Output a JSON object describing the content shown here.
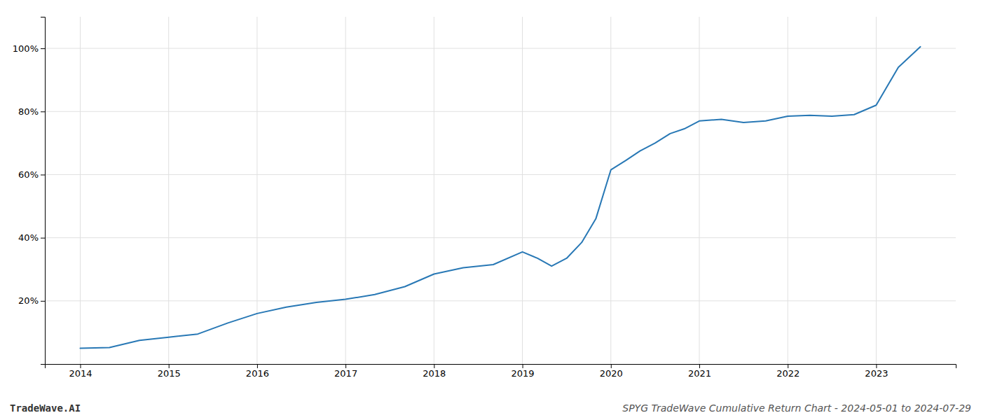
{
  "chart_data": {
    "type": "line",
    "title": "SPYG TradeWave Cumulative Return Chart - 2024-05-01 to 2024-07-29",
    "annotations": [
      "TradeWave.AI"
    ],
    "x": [
      2014.0,
      2014.33,
      2014.67,
      2015.0,
      2015.33,
      2015.67,
      2016.0,
      2016.33,
      2016.67,
      2017.0,
      2017.33,
      2017.67,
      2018.0,
      2018.33,
      2018.67,
      2019.0,
      2019.17,
      2019.33,
      2019.5,
      2019.67,
      2019.83,
      2020.0,
      2020.17,
      2020.33,
      2020.5,
      2020.67,
      2020.83,
      2021.0,
      2021.25,
      2021.5,
      2021.75,
      2022.0,
      2022.25,
      2022.5,
      2022.75,
      2023.0,
      2023.25,
      2023.5
    ],
    "values": [
      5.0,
      5.2,
      7.5,
      8.5,
      9.5,
      13.0,
      16.0,
      18.0,
      19.5,
      20.5,
      22.0,
      24.5,
      28.5,
      30.5,
      31.5,
      35.5,
      33.5,
      31.0,
      33.5,
      38.5,
      46.0,
      61.5,
      64.5,
      67.5,
      70.0,
      73.0,
      74.5,
      77.0,
      77.5,
      76.5,
      77.0,
      78.5,
      78.8,
      78.5,
      79.0,
      82.0,
      94.0,
      100.5
    ],
    "color": "#2878b5",
    "xlim": [
      2013.6,
      2023.9
    ],
    "xticks": [
      2014,
      2015,
      2016,
      2017,
      2018,
      2019,
      2020,
      2021,
      2022,
      2023
    ],
    "ylim": [
      0,
      110
    ],
    "yticks": [
      {
        "value": 20,
        "label": "20%"
      },
      {
        "value": 40,
        "label": "40%"
      },
      {
        "value": 60,
        "label": "60%"
      },
      {
        "value": 80,
        "label": "80%"
      },
      {
        "value": 100,
        "label": "100%"
      }
    ],
    "grid": true
  }
}
